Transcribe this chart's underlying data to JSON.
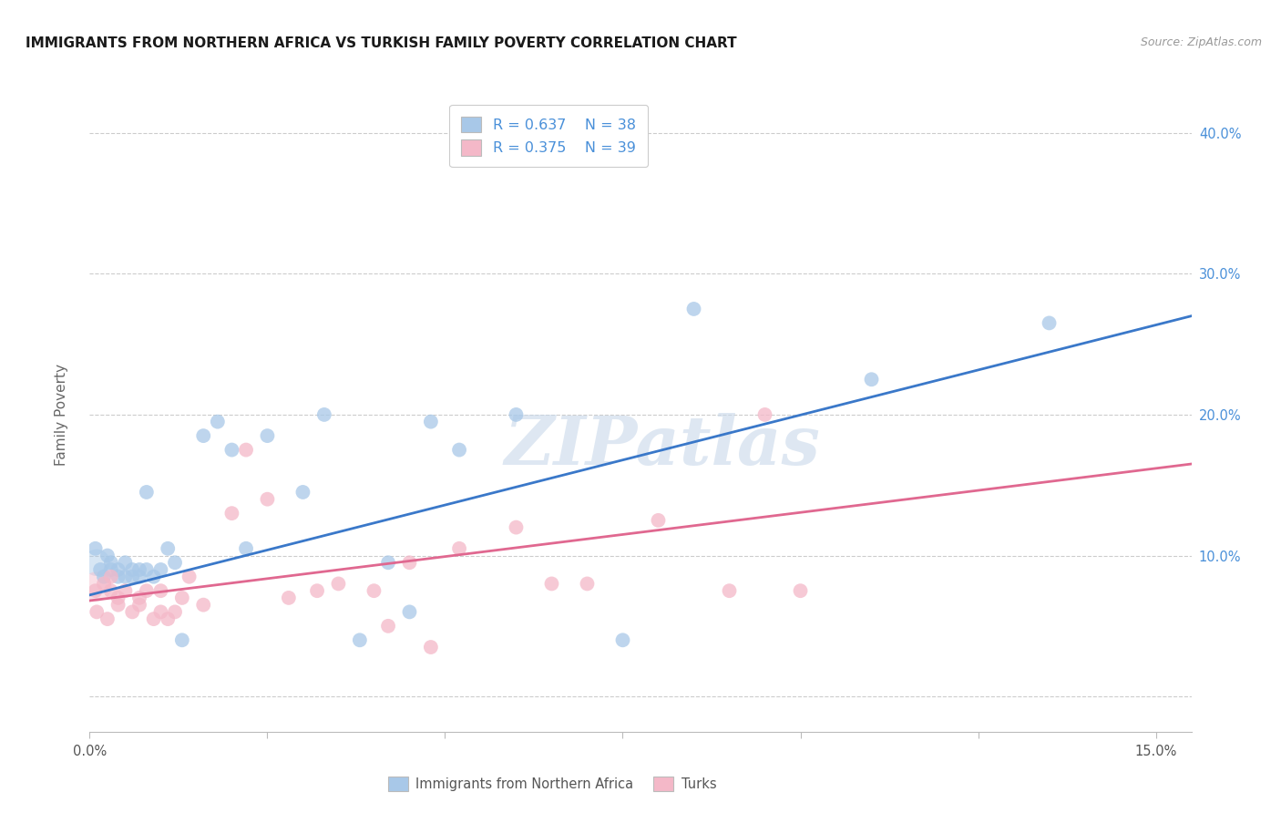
{
  "title": "IMMIGRANTS FROM NORTHERN AFRICA VS TURKISH FAMILY POVERTY CORRELATION CHART",
  "source": "Source: ZipAtlas.com",
  "ylabel_label": "Family Poverty",
  "xlim": [
    0.0,
    0.155
  ],
  "ylim": [
    -0.025,
    0.425
  ],
  "xtick_positions": [
    0.0,
    0.025,
    0.05,
    0.075,
    0.1,
    0.125,
    0.15
  ],
  "ytick_positions": [
    0.0,
    0.1,
    0.2,
    0.3,
    0.4
  ],
  "blue_R": 0.637,
  "blue_N": 38,
  "pink_R": 0.375,
  "pink_N": 39,
  "blue_color": "#a8c8e8",
  "pink_color": "#f4b8c8",
  "blue_line_color": "#3a78c9",
  "pink_line_color": "#e06890",
  "watermark": "ZIPatlas",
  "legend_text_color": "#4a90d9",
  "legend_label_blue": "Immigrants from Northern Africa",
  "legend_label_pink": "Turks",
  "blue_points": [
    [
      0.0008,
      0.105
    ],
    [
      0.0015,
      0.09
    ],
    [
      0.002,
      0.085
    ],
    [
      0.0025,
      0.1
    ],
    [
      0.003,
      0.09
    ],
    [
      0.003,
      0.095
    ],
    [
      0.004,
      0.09
    ],
    [
      0.004,
      0.085
    ],
    [
      0.005,
      0.095
    ],
    [
      0.005,
      0.085
    ],
    [
      0.006,
      0.09
    ],
    [
      0.006,
      0.085
    ],
    [
      0.007,
      0.09
    ],
    [
      0.007,
      0.085
    ],
    [
      0.008,
      0.09
    ],
    [
      0.008,
      0.145
    ],
    [
      0.009,
      0.085
    ],
    [
      0.01,
      0.09
    ],
    [
      0.011,
      0.105
    ],
    [
      0.012,
      0.095
    ],
    [
      0.013,
      0.04
    ],
    [
      0.016,
      0.185
    ],
    [
      0.018,
      0.195
    ],
    [
      0.02,
      0.175
    ],
    [
      0.022,
      0.105
    ],
    [
      0.025,
      0.185
    ],
    [
      0.03,
      0.145
    ],
    [
      0.033,
      0.2
    ],
    [
      0.038,
      0.04
    ],
    [
      0.042,
      0.095
    ],
    [
      0.045,
      0.06
    ],
    [
      0.048,
      0.195
    ],
    [
      0.052,
      0.175
    ],
    [
      0.06,
      0.2
    ],
    [
      0.075,
      0.04
    ],
    [
      0.085,
      0.275
    ],
    [
      0.11,
      0.225
    ],
    [
      0.135,
      0.265
    ]
  ],
  "pink_points": [
    [
      0.0008,
      0.075
    ],
    [
      0.001,
      0.06
    ],
    [
      0.002,
      0.08
    ],
    [
      0.0025,
      0.055
    ],
    [
      0.003,
      0.075
    ],
    [
      0.003,
      0.085
    ],
    [
      0.004,
      0.07
    ],
    [
      0.004,
      0.065
    ],
    [
      0.005,
      0.075
    ],
    [
      0.006,
      0.06
    ],
    [
      0.007,
      0.07
    ],
    [
      0.007,
      0.065
    ],
    [
      0.008,
      0.075
    ],
    [
      0.009,
      0.055
    ],
    [
      0.01,
      0.06
    ],
    [
      0.01,
      0.075
    ],
    [
      0.011,
      0.055
    ],
    [
      0.012,
      0.06
    ],
    [
      0.013,
      0.07
    ],
    [
      0.014,
      0.085
    ],
    [
      0.016,
      0.065
    ],
    [
      0.02,
      0.13
    ],
    [
      0.022,
      0.175
    ],
    [
      0.025,
      0.14
    ],
    [
      0.028,
      0.07
    ],
    [
      0.032,
      0.075
    ],
    [
      0.035,
      0.08
    ],
    [
      0.04,
      0.075
    ],
    [
      0.042,
      0.05
    ],
    [
      0.045,
      0.095
    ],
    [
      0.048,
      0.035
    ],
    [
      0.052,
      0.105
    ],
    [
      0.06,
      0.12
    ],
    [
      0.065,
      0.08
    ],
    [
      0.07,
      0.08
    ],
    [
      0.08,
      0.125
    ],
    [
      0.09,
      0.075
    ],
    [
      0.095,
      0.2
    ],
    [
      0.1,
      0.075
    ]
  ],
  "blue_line_x0": 0.0,
  "blue_line_y0": 0.072,
  "blue_line_x1": 0.15,
  "blue_line_y1": 0.27,
  "pink_line_x0": 0.0,
  "pink_line_y0": 0.068,
  "pink_line_x1": 0.15,
  "pink_line_y1": 0.165
}
